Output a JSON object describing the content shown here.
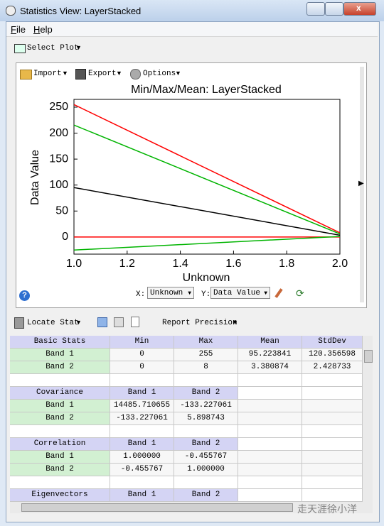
{
  "window": {
    "title": "Statistics View: LayerStacked"
  },
  "menu": [
    "File",
    "Help"
  ],
  "toolbar": {
    "select_plot": "Select Plot"
  },
  "plot_toolbar": [
    "Import",
    "Export",
    "Options"
  ],
  "chart_data": {
    "type": "line",
    "title": "Min/Max/Mean: LayerStacked",
    "x_label": "Unknown",
    "y_label": "Data Value",
    "x": [
      1,
      2
    ],
    "xlim": [
      1,
      2
    ],
    "xticks": [
      {
        "value": 1,
        "label": "1.0"
      },
      {
        "value": 1.2,
        "label": "1.2"
      },
      {
        "value": 1.4,
        "label": "1.4"
      },
      {
        "value": 1.6,
        "label": "1.6"
      },
      {
        "value": 1.8,
        "label": "1.8"
      },
      {
        "value": 2,
        "label": "2.0"
      }
    ],
    "ylim": [
      -33,
      265
    ],
    "yticks": [
      0,
      50,
      100,
      150,
      200,
      250
    ],
    "series": [
      {
        "color": "#ff0000",
        "values": [
          255,
          8
        ]
      },
      {
        "color": "#ff0000",
        "values": [
          0,
          0
        ]
      },
      {
        "color": "#00b400",
        "values": [
          215.58,
          5.81
        ]
      },
      {
        "color": "#00b400",
        "values": [
          -25.13,
          0.95
        ]
      },
      {
        "color": "#000000",
        "values": [
          95.22,
          3.38
        ]
      }
    ]
  },
  "plot_controls": {
    "x_label": "X:",
    "x_value": "Unknown",
    "y_label": "Y:",
    "y_value": "Data Value"
  },
  "stats_toolbar": {
    "locate": "Locate Stat",
    "precision": "Report Precision"
  },
  "table": {
    "sections": [
      {
        "header": [
          "Basic Stats",
          "Min",
          "Max",
          "Mean",
          "StdDev"
        ],
        "rows": [
          [
            "Band 1",
            "0",
            "255",
            "95.223841",
            "120.356598"
          ],
          [
            "Band 2",
            "0",
            "8",
            "3.380874",
            "2.428733"
          ]
        ]
      },
      {
        "header": [
          "Covariance",
          "Band 1",
          "Band 2"
        ],
        "rows": [
          [
            "Band 1",
            "14485.710655",
            "-133.227061"
          ],
          [
            "Band 2",
            "-133.227061",
            "5.898743"
          ]
        ]
      },
      {
        "header": [
          "Correlation",
          "Band 1",
          "Band 2"
        ],
        "rows": [
          [
            "Band 1",
            "1.000000",
            "-0.455767"
          ],
          [
            "Band 2",
            "-0.455767",
            "1.000000"
          ]
        ]
      },
      {
        "header": [
          "Eigenvectors",
          "Band 1",
          "Band 2"
        ],
        "rows": []
      }
    ]
  },
  "watermark": "走天涯徐小洋"
}
